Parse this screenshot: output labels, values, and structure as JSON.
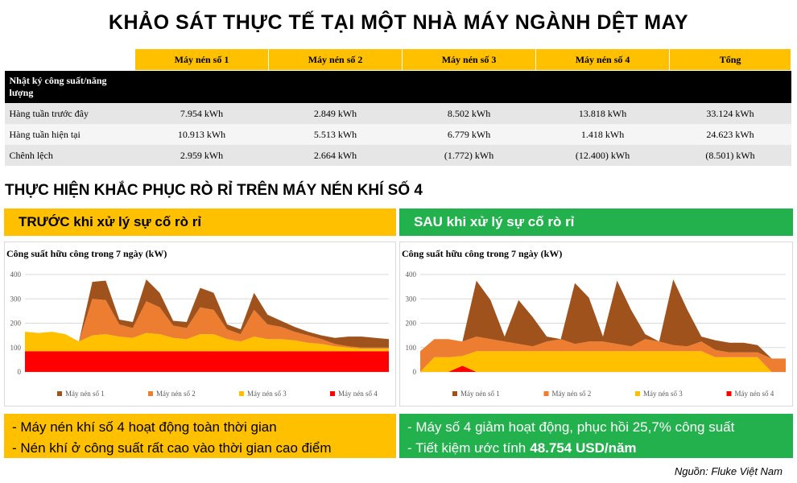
{
  "title": "KHẢO SÁT THỰC TẾ TẠI MỘT NHÀ MÁY NGÀNH DỆT MAY",
  "table": {
    "columns": [
      "Máy nén số 1",
      "Máy nén số 2",
      "Máy nén số 3",
      "Máy nén số 4",
      "Tổng"
    ],
    "section": "Nhật ký công suất/năng lượng",
    "rows": [
      [
        "Hàng tuần trước đây",
        "7.954 kWh",
        "2.849 kWh",
        "8.502 kWh",
        "13.818 kWh",
        "33.124 kWh"
      ],
      [
        "Hàng tuần hiện tại",
        "10.913 kWh",
        "5.513 kWh",
        "6.779 kWh",
        "1.418 kWh",
        "24.623 kWh"
      ],
      [
        "Chênh lệch",
        "2.959 kWh",
        "2.664 kWh",
        "(1.772) kWh",
        "(12.400) kWh",
        "(8.501) kWh"
      ]
    ]
  },
  "subtitle": "THỰC HIỆN KHẮC PHỤC RÒ RỈ TRÊN MÁY NÉN KHÍ SỐ 4",
  "panels": [
    {
      "heading": "TRƯỚC khi xử lý sự cố rò rỉ",
      "heading_color": "#ffc000",
      "chart_data": {
        "type": "stacked_area",
        "title": "Công suất hữu công trong 7 ngày (kW)",
        "ylim": [
          0,
          400
        ],
        "yticks": [
          0,
          100,
          200,
          300,
          400
        ],
        "grid": true,
        "legend": "bottom",
        "series": [
          {
            "name": "Máy nén số 1",
            "color": "#a0521d",
            "values": [
              0,
              0,
              0,
              0,
              0,
              70,
              80,
              20,
              25,
              90,
              60,
              20,
              25,
              80,
              70,
              20,
              20,
              70,
              40,
              25,
              20,
              15,
              15,
              25,
              40,
              45,
              40,
              35
            ]
          },
          {
            "name": "Máy nén số 2",
            "color": "#ed7d31",
            "values": [
              0,
              0,
              0,
              0,
              0,
              150,
              140,
              50,
              40,
              130,
              110,
              50,
              45,
              110,
              100,
              40,
              30,
              110,
              60,
              50,
              35,
              30,
              20,
              10,
              5,
              5,
              5,
              5
            ]
          },
          {
            "name": "Máy nén số 3",
            "color": "#ffc000",
            "values": [
              80,
              75,
              80,
              70,
              40,
              65,
              70,
              60,
              55,
              75,
              70,
              55,
              50,
              70,
              70,
              50,
              40,
              60,
              50,
              50,
              45,
              35,
              30,
              20,
              15,
              10,
              10,
              10
            ]
          },
          {
            "name": "Máy nén số 4",
            "color": "#ff0000",
            "values": [
              85,
              85,
              85,
              85,
              85,
              85,
              85,
              85,
              85,
              85,
              85,
              85,
              85,
              85,
              85,
              85,
              85,
              85,
              85,
              85,
              85,
              85,
              85,
              85,
              85,
              85,
              85,
              85
            ]
          }
        ]
      },
      "notes": [
        "- Máy nén khí số 4 hoạt động toàn thời gian",
        "- Nén khí ở công suất rất cao vào thời gian cao điểm"
      ]
    },
    {
      "heading": "SAU khi xử lý sự cố rò rỉ",
      "heading_color": "#22b14c",
      "chart_data": {
        "type": "stacked_area",
        "title": "Công suất hữu công trong 7 ngày (kW)",
        "ylim": [
          0,
          400
        ],
        "yticks": [
          0,
          100,
          200,
          300,
          400
        ],
        "grid": true,
        "legend": "bottom",
        "series": [
          {
            "name": "Máy nén số 1",
            "color": "#a0521d",
            "values": [
              0,
              0,
              0,
              0,
              230,
              160,
              20,
              180,
              120,
              20,
              0,
              250,
              180,
              20,
              260,
              150,
              20,
              0,
              270,
              150,
              20,
              40,
              40,
              40,
              30,
              0,
              0
            ]
          },
          {
            "name": "Máy nén số 2",
            "color": "#ed7d31",
            "values": [
              85,
              75,
              75,
              60,
              60,
              50,
              40,
              30,
              20,
              40,
              50,
              30,
              40,
              40,
              30,
              20,
              50,
              40,
              25,
              20,
              40,
              30,
              20,
              20,
              20,
              55,
              55
            ]
          },
          {
            "name": "Máy nén số 3",
            "color": "#ffc000",
            "values": [
              0,
              60,
              60,
              40,
              85,
              85,
              85,
              85,
              85,
              85,
              85,
              85,
              85,
              85,
              85,
              85,
              85,
              85,
              85,
              85,
              85,
              60,
              60,
              60,
              60,
              0,
              0
            ]
          },
          {
            "name": "Máy nén số 4",
            "color": "#ff0000",
            "values": [
              0,
              0,
              0,
              25,
              0,
              0,
              0,
              0,
              0,
              0,
              0,
              0,
              0,
              0,
              0,
              0,
              0,
              0,
              0,
              0,
              0,
              0,
              0,
              0,
              0,
              0,
              0
            ]
          }
        ]
      },
      "notes": [
        "- Máy số 4 giảm hoạt động, phục hồi 25,7% công suất",
        "- Tiết kiệm ước tính"
      ],
      "highlight": "48.754 USD/năm"
    }
  ],
  "source": "Nguồn: Fluke Việt Nam"
}
